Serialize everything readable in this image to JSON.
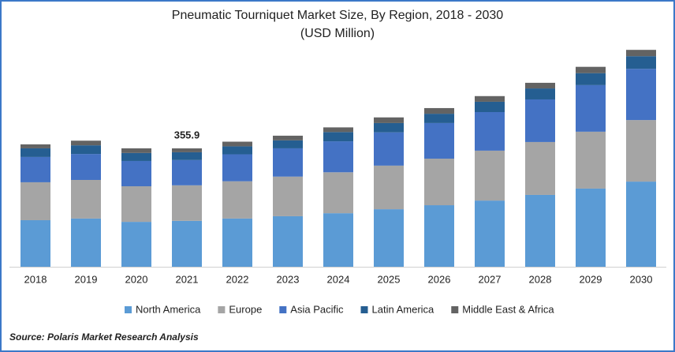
{
  "chart_data": {
    "type": "stacked_bar",
    "title": "Pneumatic Tourniquet Market Size, By Region, 2018 - 2030",
    "subtitle": "(USD Million)",
    "categories": [
      "2018",
      "2019",
      "2020",
      "2021",
      "2022",
      "2023",
      "2024",
      "2025",
      "2026",
      "2027",
      "2028",
      "2029",
      "2030"
    ],
    "series": [
      {
        "name": "North America",
        "color": "#5b9bd5",
        "values": [
          140,
          145,
          135,
          138.0,
          145,
          152,
          161,
          173,
          185,
          199,
          216,
          235,
          256
        ]
      },
      {
        "name": "Europe",
        "color": "#a5a5a5",
        "values": [
          114,
          116,
          107,
          106.8,
          112,
          119,
          123,
          131,
          140,
          150,
          159,
          171,
          185
        ]
      },
      {
        "name": "Asia Pacific",
        "color": "#4472c4",
        "values": [
          76,
          78,
          76,
          75.9,
          81,
          85,
          93,
          100,
          107,
          116,
          128,
          140,
          154
        ]
      },
      {
        "name": "Latin America",
        "color": "#255e91",
        "values": [
          26,
          26,
          24,
          23.5,
          24,
          24,
          28,
          28,
          28,
          31,
          33,
          36,
          38
        ]
      },
      {
        "name": "Middle East & Africa",
        "color": "#636363",
        "values": [
          12,
          14,
          14,
          11.7,
          14,
          14,
          14,
          17,
          17,
          17,
          17,
          19,
          19
        ]
      }
    ],
    "annotations": [
      {
        "x": "2021",
        "text": "355.9"
      }
    ],
    "source": "Source: Polaris Market Research Analysis"
  }
}
